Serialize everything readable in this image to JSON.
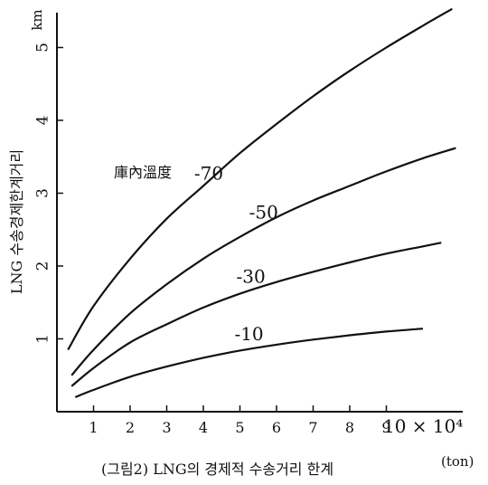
{
  "chart_data": {
    "type": "line",
    "title": "",
    "ylabel": "LNG 수송경제한계거리",
    "y_unit": "km",
    "x_multiplier": "10 × 10⁴",
    "x_unit": "(ton)",
    "caption": "(그림2) LNG의 경제적 수송거리 한계",
    "legend_title": "庫內溫度",
    "x_ticks": [
      "1",
      "2",
      "3",
      "4",
      "5",
      "6",
      "7",
      "8",
      "9"
    ],
    "y_ticks": [
      "1",
      "2",
      "3",
      "4",
      "5"
    ],
    "xlim": [
      0,
      10.9
    ],
    "ylim": [
      0,
      5.6
    ],
    "grid": false,
    "series": [
      {
        "name": "-70",
        "x": [
          0.3,
          1,
          2,
          3,
          4,
          5,
          6,
          7,
          8,
          9,
          10,
          10.8
        ],
        "values": [
          0.85,
          1.45,
          2.1,
          2.65,
          3.1,
          3.55,
          3.95,
          4.33,
          4.68,
          5.0,
          5.3,
          5.53
        ]
      },
      {
        "name": "-50",
        "x": [
          0.4,
          1,
          2,
          3,
          4,
          5,
          6,
          7,
          8,
          9,
          10,
          10.9
        ],
        "values": [
          0.5,
          0.85,
          1.35,
          1.75,
          2.1,
          2.4,
          2.67,
          2.9,
          3.1,
          3.3,
          3.48,
          3.62
        ]
      },
      {
        "name": "-30",
        "x": [
          0.4,
          1,
          2,
          3,
          4,
          5,
          6,
          7,
          8,
          9,
          10,
          10.5
        ],
        "values": [
          0.35,
          0.6,
          0.95,
          1.2,
          1.43,
          1.62,
          1.78,
          1.92,
          2.05,
          2.17,
          2.27,
          2.32
        ]
      },
      {
        "name": "-10",
        "x": [
          0.5,
          1,
          2,
          3,
          4,
          5,
          6,
          7,
          8,
          9,
          10
        ],
        "values": [
          0.2,
          0.3,
          0.48,
          0.62,
          0.74,
          0.84,
          0.92,
          0.99,
          1.05,
          1.1,
          1.14
        ]
      }
    ]
  }
}
